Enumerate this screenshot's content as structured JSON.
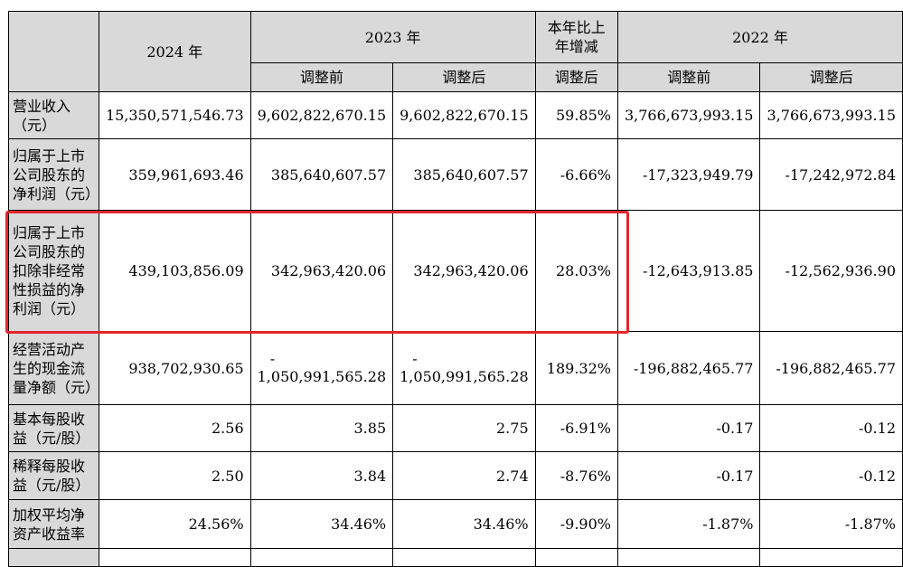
{
  "header": {
    "y2024": "2024 年",
    "y2023": "2023 年",
    "change": "本年比上年增减",
    "y2022": "2022 年",
    "before": "调整前",
    "after": "调整后",
    "change_after": "调整后",
    "before_2022": "调整前",
    "after_2022": "调整后"
  },
  "rows": [
    {
      "label": "营业收入（元）",
      "v2024": "15,350,571,546.73",
      "v2023_before": "9,602,822,670.15",
      "v2023_after": "9,602,822,670.15",
      "change": "59.85%",
      "v2022_before": "3,766,673,993.15",
      "v2022_after": "3,766,673,993.15"
    },
    {
      "label": "归属于上市公司股东的净利润（元）",
      "v2024": "359,961,693.46",
      "v2023_before": "385,640,607.57",
      "v2023_after": "385,640,607.57",
      "change": "-6.66%",
      "v2022_before": "-17,323,949.79",
      "v2022_after": "-17,242,972.84"
    },
    {
      "label": "归属于上市公司股东的扣除非经常性损益的净利润（元）",
      "v2024": "439,103,856.09",
      "v2023_before": "342,963,420.06",
      "v2023_after": "342,963,420.06",
      "change": "28.03%",
      "v2022_before": "-12,643,913.85",
      "v2022_after": "-12,562,936.90"
    },
    {
      "label": "经营活动产生的现金流量净额（元）",
      "v2024": "938,702,930.65",
      "v2023_before_sign": "-",
      "v2023_before": "1,050,991,565.28",
      "v2023_after_sign": "-",
      "v2023_after": "1,050,991,565.28",
      "change": "189.32%",
      "v2022_before": "-196,882,465.77",
      "v2022_after": "-196,882,465.77"
    },
    {
      "label": "基本每股收益（元/股）",
      "v2024": "2.56",
      "v2023_before": "3.85",
      "v2023_after": "2.75",
      "change": "-6.91%",
      "v2022_before": "-0.17",
      "v2022_after": "-0.12"
    },
    {
      "label": "稀释每股收益（元/股）",
      "v2024": "2.50",
      "v2023_before": "3.84",
      "v2023_after": "2.74",
      "change": "-8.76%",
      "v2022_before": "-0.17",
      "v2022_after": "-0.12"
    },
    {
      "label": "加权平均净资产收益率",
      "v2024": "24.56%",
      "v2023_before": "34.46%",
      "v2023_after": "34.46%",
      "change": "-9.90%",
      "v2022_before": "-1.87%",
      "v2022_after": "-1.87%"
    }
  ]
}
